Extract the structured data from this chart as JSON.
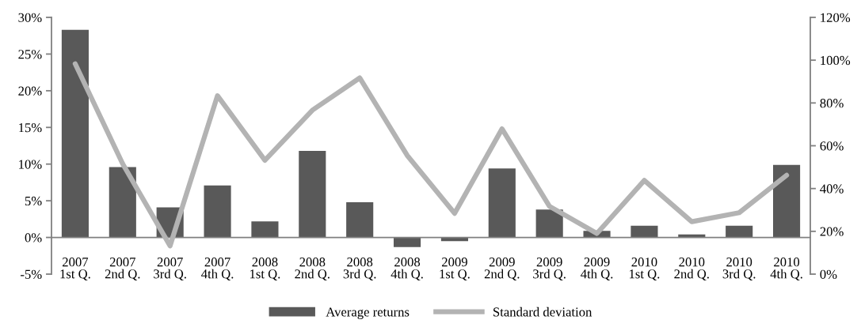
{
  "chart_data": {
    "type": "bar",
    "categories": [
      "2007\n1st Q.",
      "2007\n2nd Q.",
      "2007\n3rd Q.",
      "2007\n4th Q.",
      "2008\n1st Q.",
      "2008\n2nd Q.",
      "2008\n3rd Q.",
      "2008\n4th Q.",
      "2009\n1st Q.",
      "2009\n2nd Q.",
      "2009\n3rd Q.",
      "2009\n4th Q.",
      "2010\n1st Q.",
      "2010\n2nd Q.",
      "2010\n3rd Q.",
      "2010\n4th Q."
    ],
    "series": [
      {
        "name": "Average returns",
        "color": "#595959",
        "values": [
          28.3,
          9.6,
          4.1,
          7.1,
          2.2,
          11.8,
          4.8,
          -1.3,
          -0.5,
          9.4,
          3.8,
          0.9,
          1.6,
          0.4,
          1.6,
          9.9
        ]
      },
      {
        "name": "Standard deviation",
        "type": "line",
        "axis": "y2",
        "color": "#b3b3b3",
        "values": [
          98.3,
          51.6,
          13.2,
          83.4,
          53.2,
          76.6,
          91.7,
          55.5,
          28.4,
          67.9,
          31.7,
          19.0,
          43.8,
          24.5,
          28.7,
          46.2
        ]
      }
    ],
    "ylim": [
      -5,
      30
    ],
    "yticks": [
      {
        "value": -5,
        "label": "-5%"
      },
      {
        "value": 0,
        "label": "0%"
      },
      {
        "value": 5,
        "label": "5%"
      },
      {
        "value": 10,
        "label": "10%"
      },
      {
        "value": 15,
        "label": "15%"
      },
      {
        "value": 20,
        "label": "20%"
      },
      {
        "value": 25,
        "label": "25%"
      },
      {
        "value": 30,
        "label": "30%"
      }
    ],
    "y2lim": [
      0,
      120
    ],
    "y2ticks": [
      {
        "value": 0,
        "label": "0%"
      },
      {
        "value": 20,
        "label": "20%"
      },
      {
        "value": 40,
        "label": "40%"
      },
      {
        "value": 60,
        "label": "60%"
      },
      {
        "value": 80,
        "label": "80%"
      },
      {
        "value": 100,
        "label": "100%"
      },
      {
        "value": 120,
        "label": "120%"
      }
    ],
    "legend": "bottom",
    "grid": false,
    "marker": "none",
    "line_style": "solid"
  }
}
